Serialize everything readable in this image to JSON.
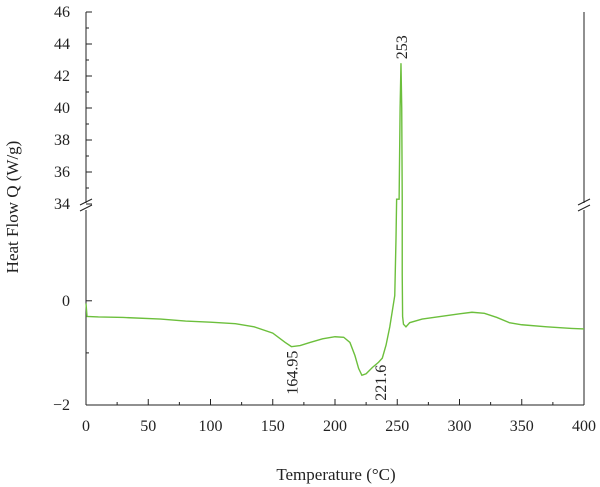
{
  "chart_data": {
    "type": "line",
    "title": "",
    "xlabel": "Temperature (°C)",
    "ylabel": "Heat Flow Q (W/g)",
    "xlim": [
      0,
      400
    ],
    "ylim_lower": [
      -2,
      1.8
    ],
    "ylim_upper": [
      34,
      46
    ],
    "broken_y_axis": true,
    "grid": false,
    "line_color": "#6cbf3c",
    "x_ticks": [
      "0",
      "50",
      "100",
      "150",
      "200",
      "250",
      "300",
      "350",
      "400"
    ],
    "y_ticks_lower": [
      "-2",
      "0"
    ],
    "y_ticks_upper": [
      "34",
      "36",
      "38",
      "40",
      "42",
      "44",
      "46"
    ],
    "annotations": [
      {
        "text": "164.95",
        "x": 165,
        "y": -0.88
      },
      {
        "text": "221.6",
        "x": 236,
        "y": -1.15
      },
      {
        "text": "253",
        "x": 253,
        "y": 42.8
      }
    ],
    "series": [
      {
        "points": [
          [
            0,
            -0.05
          ],
          [
            0.8,
            -0.3
          ],
          [
            10,
            -0.31
          ],
          [
            30,
            -0.32
          ],
          [
            60,
            -0.35
          ],
          [
            80,
            -0.39
          ],
          [
            100,
            -0.41
          ],
          [
            120,
            -0.44
          ],
          [
            135,
            -0.5
          ],
          [
            150,
            -0.62
          ],
          [
            160,
            -0.8
          ],
          [
            165,
            -0.88
          ],
          [
            172,
            -0.86
          ],
          [
            180,
            -0.8
          ],
          [
            190,
            -0.73
          ],
          [
            200,
            -0.69
          ],
          [
            207,
            -0.7
          ],
          [
            212,
            -0.8
          ],
          [
            216,
            -1.05
          ],
          [
            219,
            -1.3
          ],
          [
            221.6,
            -1.43
          ],
          [
            225,
            -1.4
          ],
          [
            230,
            -1.28
          ],
          [
            235,
            -1.18
          ],
          [
            238,
            -1.1
          ],
          [
            241,
            -0.85
          ],
          [
            244,
            -0.5
          ],
          [
            246,
            -0.2
          ],
          [
            248,
            0.1
          ],
          [
            249,
            1.2
          ],
          [
            249.5,
            34.3
          ],
          [
            251.5,
            34.3
          ],
          [
            252.3,
            40
          ],
          [
            253,
            42.8
          ],
          [
            253.6,
            40
          ],
          [
            254,
            34.3
          ],
          [
            254,
            0.5
          ],
          [
            254.3,
            -0.3
          ],
          [
            255,
            -0.45
          ],
          [
            257,
            -0.5
          ],
          [
            260,
            -0.42
          ],
          [
            270,
            -0.35
          ],
          [
            285,
            -0.3
          ],
          [
            300,
            -0.25
          ],
          [
            310,
            -0.22
          ],
          [
            320,
            -0.24
          ],
          [
            330,
            -0.32
          ],
          [
            340,
            -0.42
          ],
          [
            350,
            -0.46
          ],
          [
            370,
            -0.5
          ],
          [
            390,
            -0.53
          ],
          [
            400,
            -0.54
          ]
        ]
      }
    ]
  }
}
